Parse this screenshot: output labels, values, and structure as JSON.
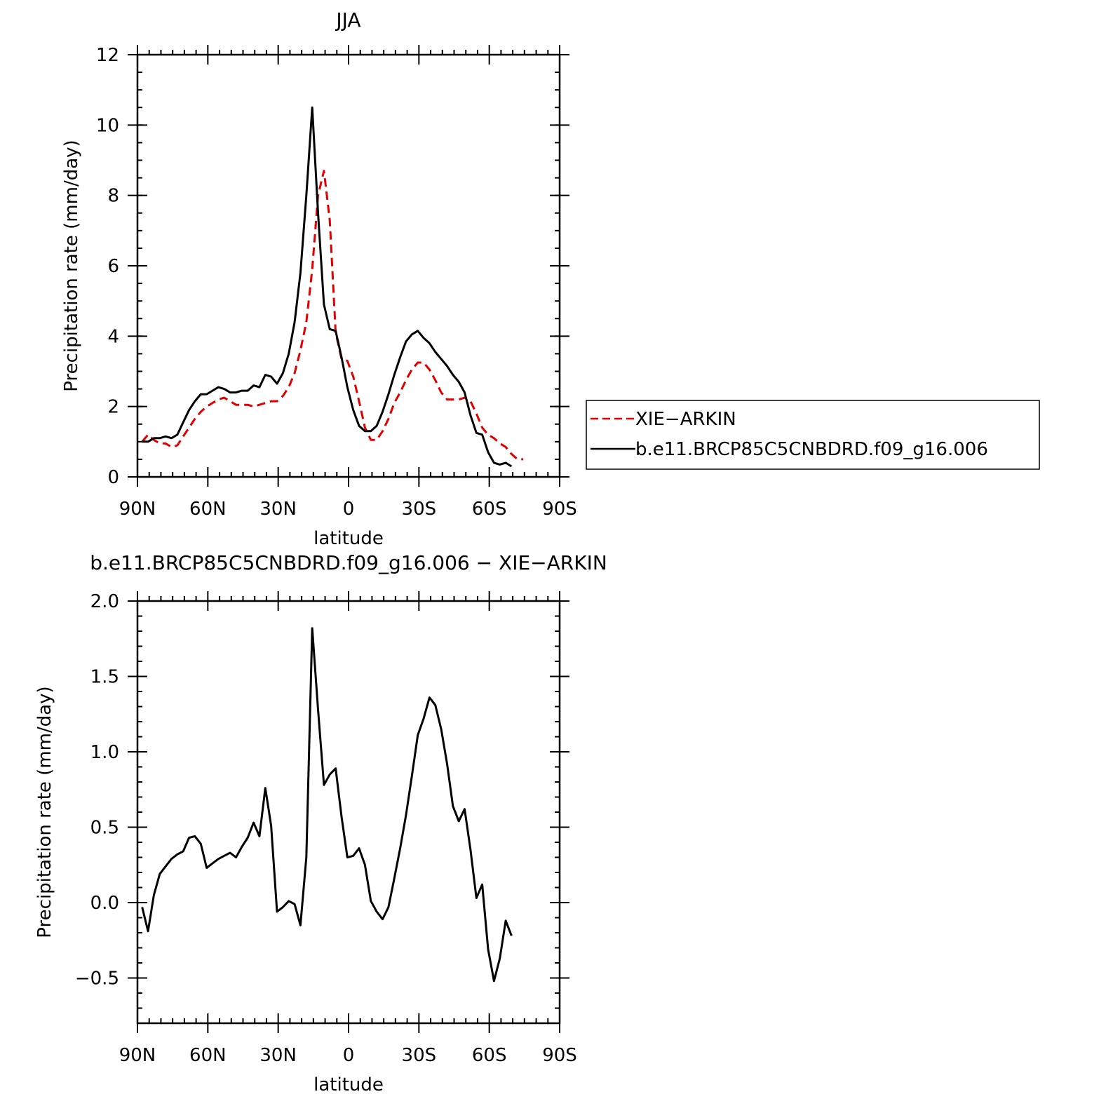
{
  "chart_data": [
    {
      "type": "line",
      "title": "JJA",
      "xlabel": "latitude",
      "ylabel": "Precipitation rate (mm/day)",
      "ylim": [
        0,
        12
      ],
      "xlim": [
        90,
        -90
      ],
      "yticks": [
        "0",
        "2",
        "4",
        "6",
        "8",
        "10",
        "12"
      ],
      "xticks": [
        "90N",
        "60N",
        "30N",
        "0",
        "30S",
        "60S",
        "90S"
      ],
      "grid": false,
      "legend": "right",
      "series": [
        {
          "name": "XIE−ARKIN",
          "color": "#e00000",
          "dash": "dashed",
          "points": [
            [
              88,
              1.0
            ],
            [
              85.5,
              1.2
            ],
            [
              83,
              1.05
            ],
            [
              80.5,
              0.95
            ],
            [
              78,
              0.95
            ],
            [
              75.5,
              0.85
            ],
            [
              73,
              0.9
            ],
            [
              70.5,
              1.15
            ],
            [
              68,
              1.4
            ],
            [
              65.5,
              1.65
            ],
            [
              63,
              1.85
            ],
            [
              60.5,
              2.0
            ],
            [
              58,
              2.1
            ],
            [
              55.5,
              2.2
            ],
            [
              53,
              2.25
            ],
            [
              50.5,
              2.15
            ],
            [
              48,
              2.05
            ],
            [
              45.5,
              2.05
            ],
            [
              43,
              2.05
            ],
            [
              40.5,
              2.0
            ],
            [
              38,
              2.05
            ],
            [
              35.5,
              2.1
            ],
            [
              33,
              2.15
            ],
            [
              30.5,
              2.15
            ],
            [
              28,
              2.3
            ],
            [
              25.5,
              2.55
            ],
            [
              23,
              2.95
            ],
            [
              20.5,
              3.6
            ],
            [
              18,
              4.4
            ],
            [
              15.5,
              5.9
            ],
            [
              13,
              8.0
            ],
            [
              10.5,
              8.7
            ],
            [
              8,
              7.3
            ],
            [
              5.5,
              4.1
            ],
            [
              3,
              3.35
            ],
            [
              0.5,
              3.3
            ],
            [
              -2,
              2.85
            ],
            [
              -4.5,
              2.15
            ],
            [
              -7,
              1.4
            ],
            [
              -9.5,
              1.05
            ],
            [
              -12,
              1.05
            ],
            [
              -14.5,
              1.3
            ],
            [
              -17,
              1.65
            ],
            [
              -19.5,
              2.1
            ],
            [
              -22,
              2.4
            ],
            [
              -24.5,
              2.75
            ],
            [
              -27,
              3.05
            ],
            [
              -29.5,
              3.25
            ],
            [
              -32,
              3.25
            ],
            [
              -34.5,
              3.05
            ],
            [
              -37,
              2.75
            ],
            [
              -39.5,
              2.4
            ],
            [
              -42,
              2.2
            ],
            [
              -44.5,
              2.2
            ],
            [
              -47,
              2.2
            ],
            [
              -49.5,
              2.25
            ],
            [
              -52,
              2.15
            ],
            [
              -54.5,
              1.8
            ],
            [
              -57,
              1.4
            ],
            [
              -59.5,
              1.2
            ],
            [
              -62,
              1.1
            ],
            [
              -64.5,
              0.95
            ],
            [
              -67,
              0.85
            ],
            [
              -69.5,
              0.65
            ],
            [
              -72,
              0.5
            ],
            [
              -74.5,
              0.5
            ]
          ]
        },
        {
          "name": "b.e11.BRCP85C5CNBDRD.f09_g16.006",
          "color": "#000000",
          "dash": "solid",
          "points": [
            [
              88,
              1.0
            ],
            [
              85.5,
              1.0
            ],
            [
              83,
              1.1
            ],
            [
              80.5,
              1.1
            ],
            [
              78,
              1.15
            ],
            [
              75.5,
              1.1
            ],
            [
              73,
              1.2
            ],
            [
              70.5,
              1.55
            ],
            [
              68,
              1.9
            ],
            [
              65.5,
              2.15
            ],
            [
              63,
              2.35
            ],
            [
              60.5,
              2.35
            ],
            [
              58,
              2.45
            ],
            [
              55.5,
              2.55
            ],
            [
              53,
              2.5
            ],
            [
              50.5,
              2.4
            ],
            [
              48,
              2.4
            ],
            [
              45.5,
              2.45
            ],
            [
              43,
              2.45
            ],
            [
              40.5,
              2.6
            ],
            [
              38,
              2.55
            ],
            [
              35.5,
              2.9
            ],
            [
              33,
              2.85
            ],
            [
              30.5,
              2.65
            ],
            [
              28,
              2.95
            ],
            [
              25.5,
              3.5
            ],
            [
              23,
              4.4
            ],
            [
              20.5,
              5.8
            ],
            [
              18,
              8.0
            ],
            [
              15.5,
              10.5
            ],
            [
              13,
              7.5
            ],
            [
              10.5,
              4.9
            ],
            [
              8,
              4.2
            ],
            [
              5.5,
              4.15
            ],
            [
              3,
              3.4
            ],
            [
              0.5,
              2.55
            ],
            [
              -2,
              1.9
            ],
            [
              -4.5,
              1.45
            ],
            [
              -7,
              1.3
            ],
            [
              -9.5,
              1.3
            ],
            [
              -12,
              1.45
            ],
            [
              -14.5,
              1.85
            ],
            [
              -17,
              2.35
            ],
            [
              -19.5,
              2.9
            ],
            [
              -22,
              3.4
            ],
            [
              -24.5,
              3.85
            ],
            [
              -27,
              4.05
            ],
            [
              -29.5,
              4.15
            ],
            [
              -32,
              3.95
            ],
            [
              -34.5,
              3.8
            ],
            [
              -37,
              3.55
            ],
            [
              -39.5,
              3.35
            ],
            [
              -42,
              3.15
            ],
            [
              -44.5,
              2.9
            ],
            [
              -47,
              2.7
            ],
            [
              -49.5,
              2.4
            ],
            [
              -52,
              1.75
            ],
            [
              -54.5,
              1.25
            ],
            [
              -57,
              1.2
            ],
            [
              -59.5,
              0.7
            ],
            [
              -62,
              0.4
            ],
            [
              -64.5,
              0.35
            ],
            [
              -67,
              0.4
            ],
            [
              -69.5,
              0.3
            ]
          ]
        }
      ]
    },
    {
      "type": "line",
      "title": "b.e11.BRCP85C5CNBDRD.f09_g16.006 − XIE−ARKIN",
      "xlabel": "latitude",
      "ylabel": "Precipitation rate (mm/day)",
      "ylim": [
        -0.8,
        2.0
      ],
      "xlim": [
        90,
        -90
      ],
      "yticks": [
        "−0.5",
        "0.0",
        "0.5",
        "1.0",
        "1.5",
        "2.0"
      ],
      "xticks": [
        "90N",
        "60N",
        "30N",
        "0",
        "30S",
        "60S",
        "90S"
      ],
      "grid": false,
      "series": [
        {
          "color": "#000000",
          "dash": "solid",
          "points": [
            [
              88,
              -0.03
            ],
            [
              85.5,
              -0.19
            ],
            [
              83,
              0.05
            ],
            [
              80.5,
              0.19
            ],
            [
              78,
              0.24
            ],
            [
              75.5,
              0.29
            ],
            [
              73,
              0.32
            ],
            [
              70.5,
              0.34
            ],
            [
              68,
              0.43
            ],
            [
              65.5,
              0.44
            ],
            [
              63,
              0.39
            ],
            [
              60.5,
              0.23
            ],
            [
              58,
              0.26
            ],
            [
              55.5,
              0.29
            ],
            [
              53,
              0.31
            ],
            [
              50.5,
              0.33
            ],
            [
              48,
              0.3
            ],
            [
              45.5,
              0.37
            ],
            [
              43,
              0.43
            ],
            [
              40.5,
              0.53
            ],
            [
              38,
              0.44
            ],
            [
              35.5,
              0.76
            ],
            [
              33,
              0.51
            ],
            [
              30.5,
              -0.06
            ],
            [
              28,
              -0.03
            ],
            [
              25.5,
              0.01
            ],
            [
              23,
              -0.01
            ],
            [
              20.5,
              -0.15
            ],
            [
              18,
              0.3
            ],
            [
              15.5,
              1.82
            ],
            [
              13,
              1.28
            ],
            [
              10.5,
              0.78
            ],
            [
              8,
              0.85
            ],
            [
              5.5,
              0.89
            ],
            [
              3,
              0.57
            ],
            [
              0.5,
              0.3
            ],
            [
              -2,
              0.31
            ],
            [
              -4.5,
              0.36
            ],
            [
              -7,
              0.25
            ],
            [
              -9.5,
              0.01
            ],
            [
              -12,
              -0.06
            ],
            [
              -14.5,
              -0.11
            ],
            [
              -17,
              -0.03
            ],
            [
              -19.5,
              0.16
            ],
            [
              -22,
              0.36
            ],
            [
              -24.5,
              0.58
            ],
            [
              -27,
              0.84
            ],
            [
              -29.5,
              1.11
            ],
            [
              -32,
              1.22
            ],
            [
              -34.5,
              1.36
            ],
            [
              -37,
              1.31
            ],
            [
              -39.5,
              1.15
            ],
            [
              -42,
              0.92
            ],
            [
              -44.5,
              0.64
            ],
            [
              -47,
              0.54
            ],
            [
              -49.5,
              0.62
            ],
            [
              -52,
              0.35
            ],
            [
              -54.5,
              0.03
            ],
            [
              -57,
              0.12
            ],
            [
              -59.5,
              -0.31
            ],
            [
              -62,
              -0.52
            ],
            [
              -64.5,
              -0.37
            ],
            [
              -67,
              -0.12
            ],
            [
              -69.5,
              -0.22
            ]
          ]
        }
      ]
    }
  ]
}
